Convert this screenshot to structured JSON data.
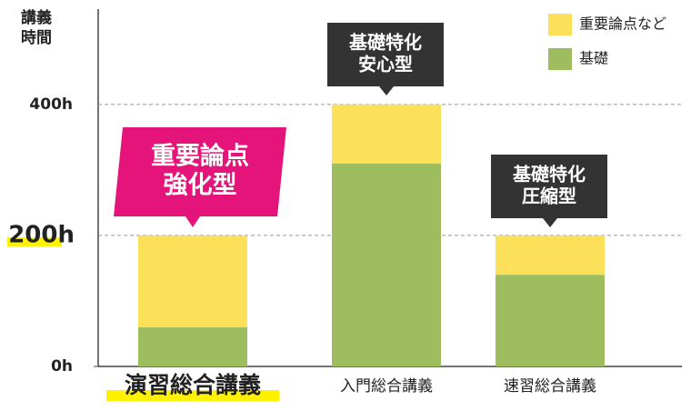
{
  "chart_data": {
    "type": "bar",
    "stacked": true,
    "y_label_lines": [
      "講義",
      "時間"
    ],
    "categories": [
      "演習総合講義",
      "入門総合講義",
      "速習総合講義"
    ],
    "series": [
      {
        "name": "基礎",
        "color": "#9dbd5f",
        "values": [
          60,
          310,
          140
        ]
      },
      {
        "name": "重要論点など",
        "color": "#fde05a",
        "values": [
          140,
          90,
          60
        ]
      }
    ],
    "ylim": [
      0,
      540
    ],
    "yticks": [
      {
        "value": 0,
        "label": "0h"
      },
      {
        "value": 200,
        "label": "200h"
      },
      {
        "value": 400,
        "label": "400h"
      }
    ],
    "grid": true,
    "legend": "top-right",
    "annotations": [
      {
        "lines": [
          "重要論点",
          "強化型"
        ],
        "color": "#e4147a"
      },
      {
        "lines": [
          "基礎特化",
          "安心型"
        ],
        "color": "#333333"
      },
      {
        "lines": [
          "基礎特化",
          "圧縮型"
        ],
        "color": "#333333"
      }
    ]
  }
}
